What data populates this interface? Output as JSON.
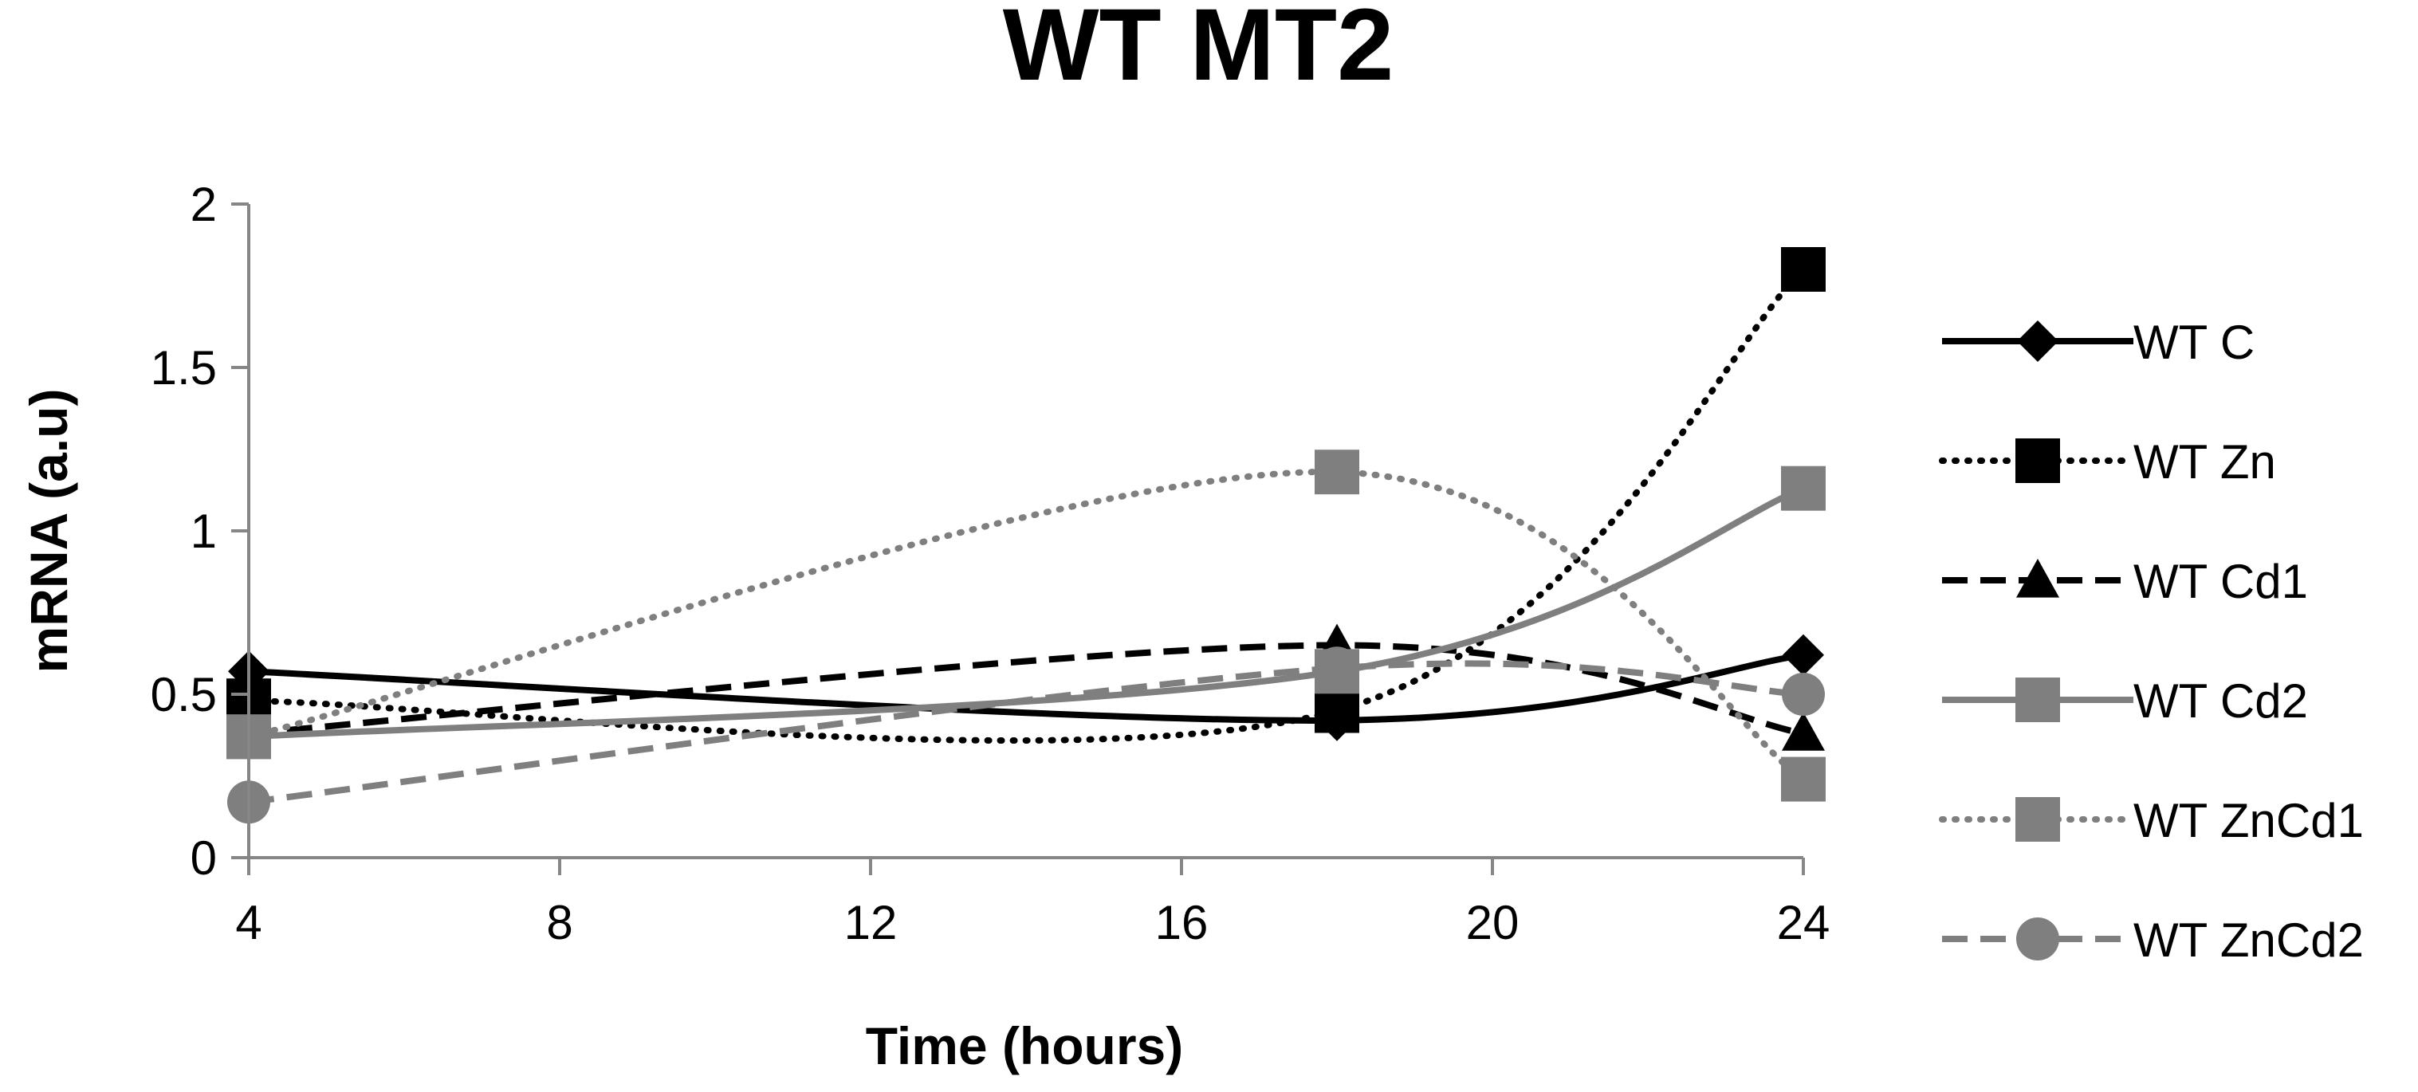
{
  "chart_data": {
    "type": "line",
    "title": "WT MT2",
    "xlabel": "Time (hours)",
    "ylabel": "mRNA (a.u)",
    "x": [
      4,
      18,
      24
    ],
    "xlim": [
      4,
      24
    ],
    "ylim": [
      0,
      2
    ],
    "xticks": [
      4,
      8,
      12,
      16,
      20,
      24
    ],
    "yticks": [
      0,
      0.5,
      1,
      1.5,
      2
    ],
    "xtick_labels": [
      "4",
      "8",
      "12",
      "16",
      "20",
      "24"
    ],
    "ytick_labels": [
      "0",
      "0.5",
      "1",
      "1.5",
      "2"
    ],
    "legend_position": "right",
    "series": [
      {
        "name": "WT C",
        "values": [
          0.57,
          0.42,
          0.62
        ],
        "color": "#000000",
        "dash": "solid",
        "marker": "diamond",
        "smooth": true
      },
      {
        "name": "WT Zn",
        "values": [
          0.48,
          0.45,
          1.8
        ],
        "color": "#000000",
        "dash": "dotted",
        "marker": "square",
        "smooth": true
      },
      {
        "name": "WT Cd1",
        "values": [
          0.38,
          0.65,
          0.38
        ],
        "color": "#000000",
        "dash": "dashed",
        "marker": "triangle",
        "smooth": true
      },
      {
        "name": "WT Cd2",
        "values": [
          0.37,
          0.57,
          1.13
        ],
        "color": "#7f7f7f",
        "dash": "solid",
        "marker": "square",
        "smooth": true
      },
      {
        "name": "WT ZnCd1",
        "values": [
          0.37,
          1.18,
          0.24
        ],
        "color": "#7f7f7f",
        "dash": "dotted",
        "marker": "square",
        "smooth": true
      },
      {
        "name": "WT ZnCd2",
        "values": [
          0.17,
          0.58,
          0.5
        ],
        "color": "#7f7f7f",
        "dash": "dashed",
        "marker": "circle",
        "smooth": true
      }
    ]
  }
}
